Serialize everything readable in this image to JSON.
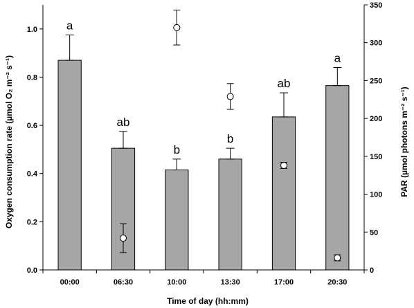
{
  "chart_data": {
    "type": "bar",
    "categories": [
      "00:00",
      "06:30",
      "10:00",
      "13:30",
      "17:00",
      "20:30"
    ],
    "xlabel": "Time of day (hh:mm)",
    "ylabel": "Oxygen consumption rate (µmol O₂ m⁻² s⁻¹)",
    "y2label": "PAR (µmol photons m⁻² s⁻¹)",
    "ylim": [
      0,
      1.1
    ],
    "y2lim": [
      0,
      350
    ],
    "yticks": [
      "0.0",
      "0.2",
      "0.4",
      "0.6",
      "0.8",
      "1.0"
    ],
    "y2ticks": [
      "0",
      "50",
      "100",
      "150",
      "200",
      "250",
      "300",
      "350"
    ],
    "grid": false,
    "bar_color": "#a6a6a6",
    "series": [
      {
        "type": "bar",
        "axis": "left",
        "values": [
          0.87,
          0.505,
          0.415,
          0.46,
          0.635,
          0.765
        ],
        "errors": [
          0.105,
          0.07,
          0.045,
          0.045,
          0.1,
          0.075
        ]
      },
      {
        "type": "scatter",
        "axis": "right",
        "values": [
          null,
          42,
          null,
          229,
          138,
          16
        ],
        "errors": [
          null,
          19,
          null,
          17,
          4,
          4
        ]
      }
    ],
    "annotations": [
      "a",
      "ab",
      "b",
      "b",
      "ab",
      "a"
    ],
    "extra_points": [
      {
        "x": "10:00",
        "value": 320,
        "error": 23,
        "axis": "right"
      }
    ]
  }
}
